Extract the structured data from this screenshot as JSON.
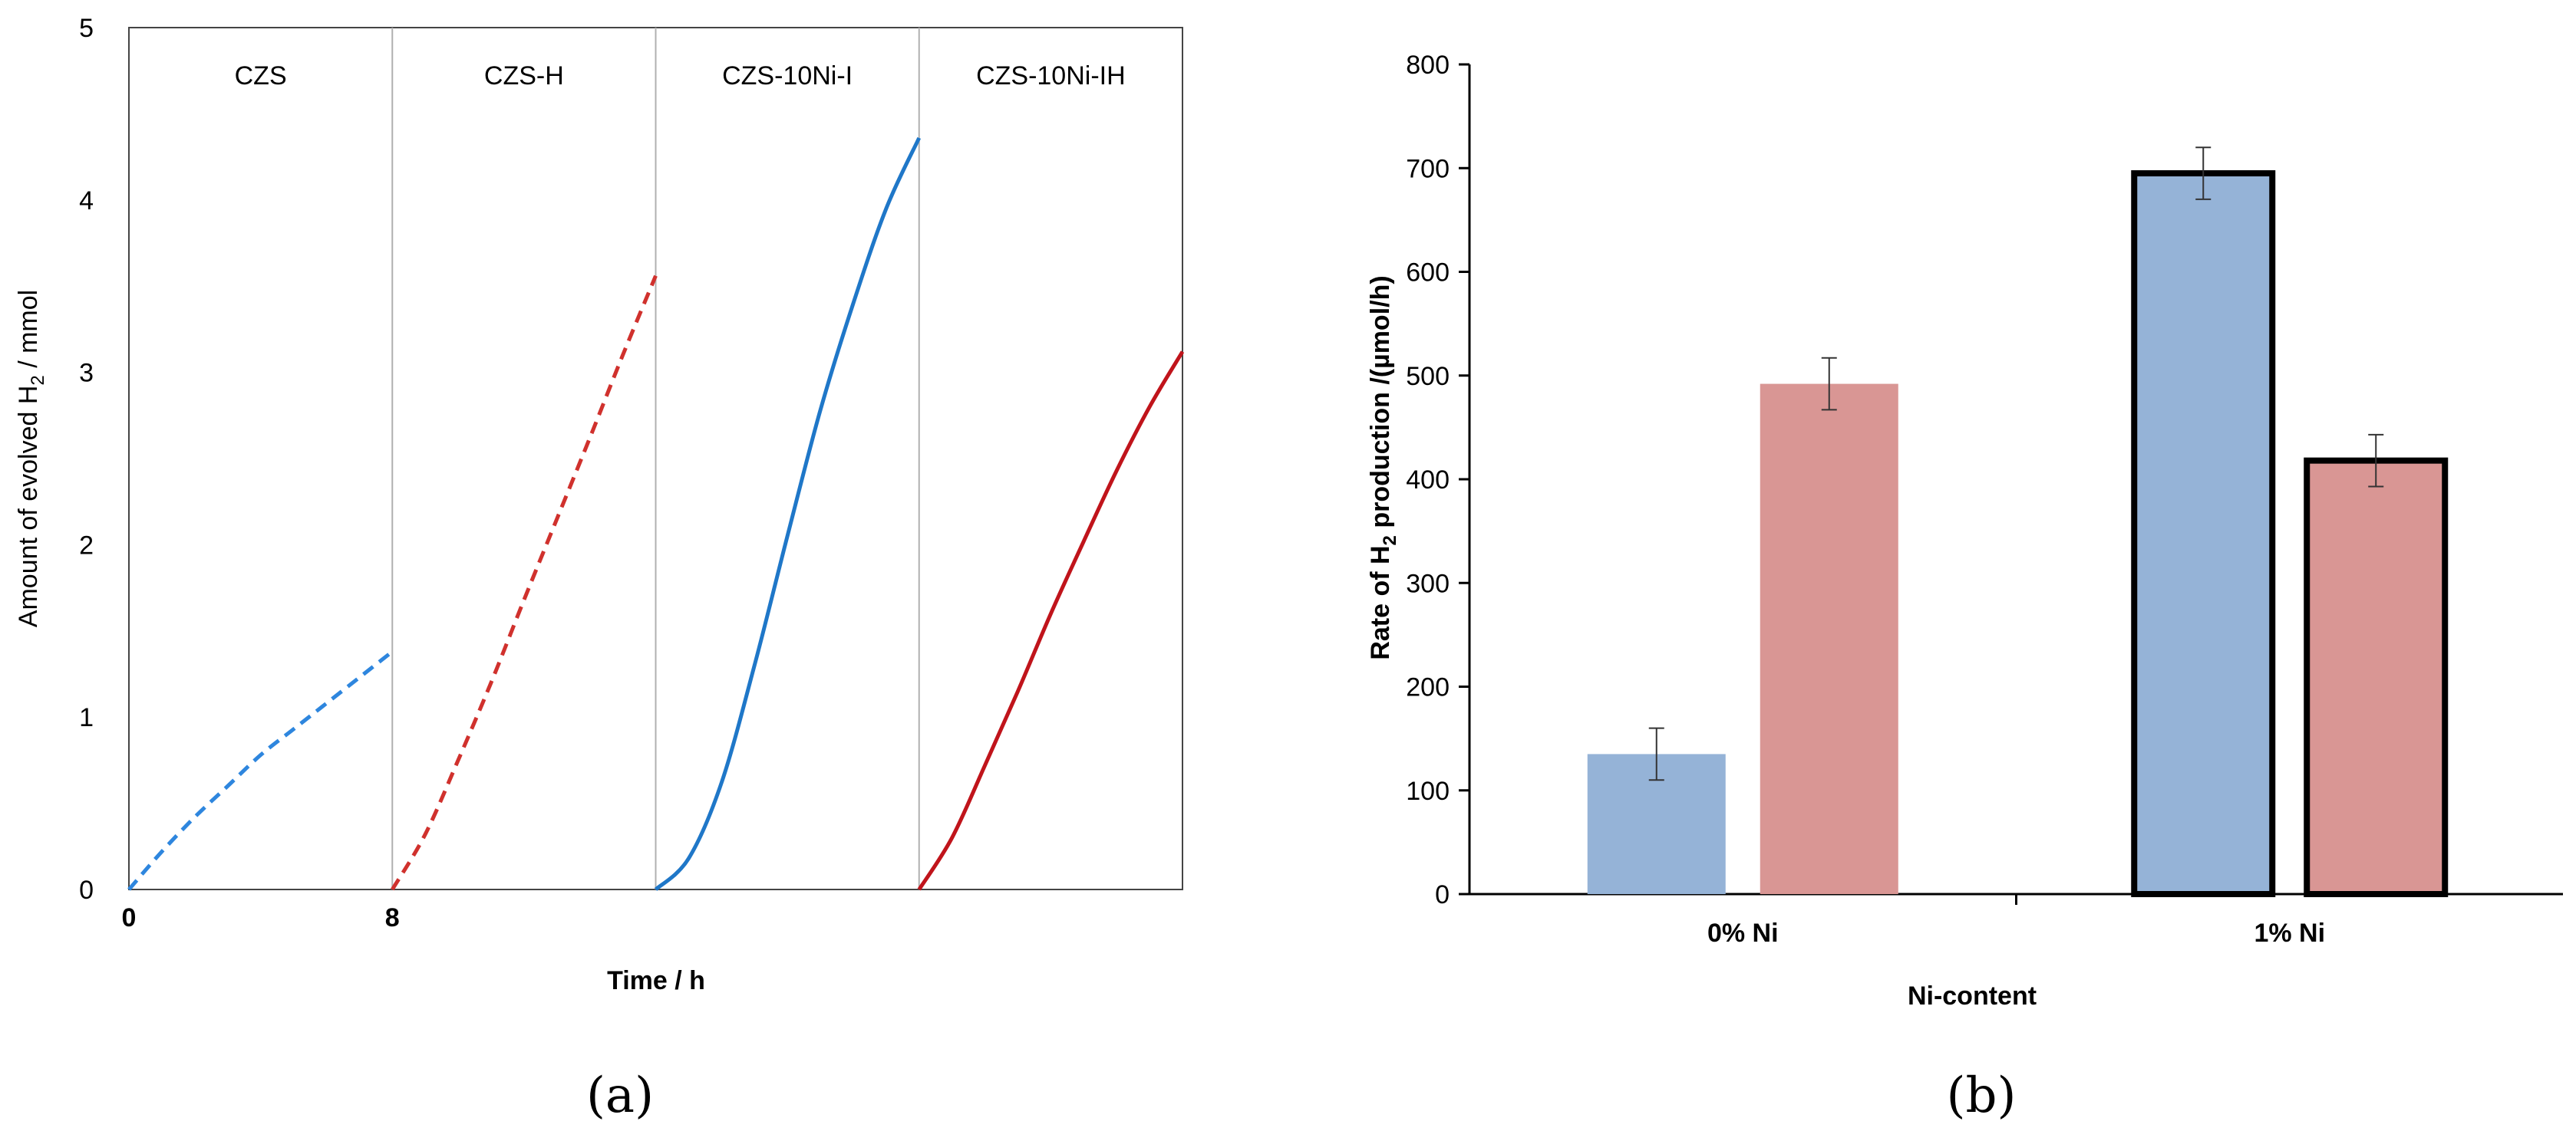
{
  "chart_data": [
    {
      "panel_label": "(a)",
      "type": "line",
      "xlabel": "Time / h",
      "ylabel_parts": [
        "Amount of evolved H",
        "2",
        " / mmol"
      ],
      "ylim": [
        0,
        5
      ],
      "xlim": [
        0,
        32
      ],
      "yticks": [
        "0",
        "1",
        "2",
        "3",
        "4",
        "5"
      ],
      "xticks": [
        {
          "x": 0,
          "label": "0"
        },
        {
          "x": 8,
          "label": "8"
        }
      ],
      "grid": false,
      "segment_labels": [
        "CZS",
        "CZS-H",
        "CZS-10Ni-I",
        "CZS-10Ni-IH"
      ],
      "segment_boundaries": [
        8,
        16,
        24
      ],
      "series": [
        {
          "name": "CZS",
          "color": "#2E86DE",
          "dash": true,
          "points": [
            [
              0,
              0
            ],
            [
              1,
              0.22
            ],
            [
              2,
              0.42
            ],
            [
              3,
              0.6
            ],
            [
              4,
              0.78
            ],
            [
              5,
              0.93
            ],
            [
              6,
              1.08
            ],
            [
              7,
              1.23
            ],
            [
              8,
              1.38
            ]
          ]
        },
        {
          "name": "CZS-H",
          "color": "#D0312D",
          "dash": true,
          "points": [
            [
              8,
              0
            ],
            [
              9,
              0.32
            ],
            [
              10,
              0.75
            ],
            [
              11,
              1.2
            ],
            [
              12,
              1.68
            ],
            [
              13,
              2.15
            ],
            [
              14,
              2.62
            ],
            [
              15,
              3.1
            ],
            [
              16,
              3.56
            ]
          ]
        },
        {
          "name": "CZS-10Ni-I",
          "color": "#1F77C8",
          "dash": false,
          "points": [
            [
              16,
              0
            ],
            [
              17,
              0.18
            ],
            [
              18,
              0.62
            ],
            [
              19,
              1.3
            ],
            [
              20,
              2.05
            ],
            [
              21,
              2.78
            ],
            [
              22,
              3.4
            ],
            [
              23,
              3.95
            ],
            [
              24,
              4.36
            ]
          ]
        },
        {
          "name": "CZS-10Ni-IH",
          "color": "#C0141B",
          "dash": false,
          "points": [
            [
              24,
              0
            ],
            [
              25,
              0.3
            ],
            [
              26,
              0.72
            ],
            [
              27,
              1.15
            ],
            [
              28,
              1.6
            ],
            [
              29,
              2.02
            ],
            [
              30,
              2.43
            ],
            [
              31,
              2.8
            ],
            [
              32,
              3.12
            ]
          ]
        }
      ]
    },
    {
      "panel_label": "(b)",
      "type": "bar",
      "xlabel": "Ni-content",
      "ylabel_parts": [
        "Rate of H",
        "2",
        " production /(µmol/h)"
      ],
      "ylim": [
        0,
        800
      ],
      "yticks": [
        "0",
        "100",
        "200",
        "300",
        "400",
        "500",
        "600",
        "700",
        "800"
      ],
      "categories": [
        "0% Ni",
        "1% Ni"
      ],
      "grid": false,
      "series": [
        {
          "color": "#95B3D7",
          "values": [
            135,
            695
          ],
          "errors": [
            25,
            25
          ],
          "bold_outline": [
            false,
            true
          ]
        },
        {
          "color": "#D99694",
          "values": [
            492,
            418
          ],
          "errors": [
            25,
            25
          ],
          "bold_outline": [
            false,
            true
          ]
        }
      ]
    }
  ]
}
